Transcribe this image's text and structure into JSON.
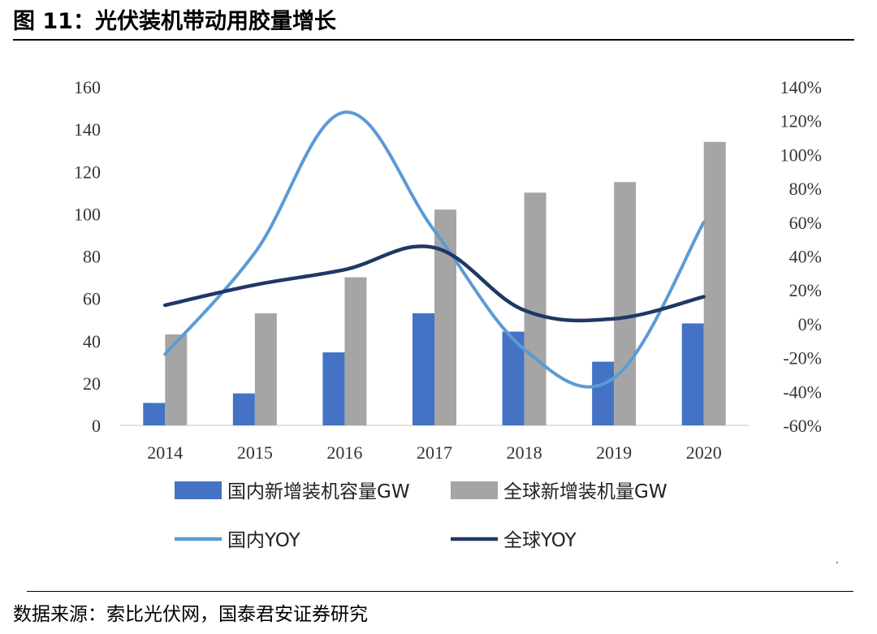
{
  "figure": {
    "title": "图 11：光伏装机带动用胶量增长",
    "source": "数据来源：索比光伏网，国泰君安证券研究"
  },
  "chart_data": {
    "type": "bar",
    "categories": [
      "2014",
      "2015",
      "2016",
      "2017",
      "2018",
      "2019",
      "2020"
    ],
    "series": [
      {
        "name": "国内新增装机容量GW",
        "type": "bar",
        "axis": "left",
        "color": "#4472C4",
        "values": [
          10.6,
          15.1,
          34.5,
          53,
          44.3,
          30.1,
          48.2
        ]
      },
      {
        "name": "全球新增装机量GW",
        "type": "bar",
        "axis": "left",
        "color": "#A5A5A5",
        "values": [
          43,
          53,
          70,
          102,
          110,
          115,
          134
        ]
      },
      {
        "name": "国内YOY",
        "type": "line",
        "axis": "right",
        "color": "#5B9BD5",
        "values": [
          -18,
          42,
          125,
          55,
          -15,
          -32,
          60
        ]
      },
      {
        "name": "全球YOY",
        "type": "line",
        "axis": "right",
        "color": "#1F3864",
        "values": [
          11,
          23,
          32,
          45,
          8,
          3,
          16
        ]
      }
    ],
    "y_left": {
      "min": 0,
      "max": 160,
      "step": 20,
      "ticks": [
        "0",
        "20",
        "40",
        "60",
        "80",
        "100",
        "120",
        "140",
        "160"
      ]
    },
    "y_right": {
      "min": -60,
      "max": 140,
      "step": 20,
      "ticks": [
        "-60%",
        "-40%",
        "-20%",
        "0%",
        "20%",
        "40%",
        "60%",
        "80%",
        "100%",
        "120%",
        "140%"
      ]
    },
    "grid": false,
    "legend_position": "bottom"
  }
}
